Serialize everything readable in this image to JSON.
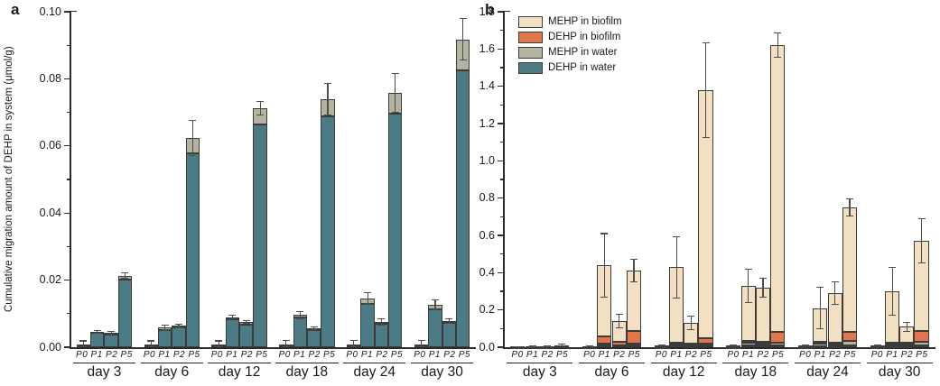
{
  "figure": {
    "background": "#ffffff"
  },
  "colors": {
    "dehp_water": "#4d7b85",
    "mehp_water": "#b4b3a0",
    "dehp_biofilm": "#e0764e",
    "mehp_biofilm": "#f3dfc1",
    "axis": "#2b2b2b",
    "error_bar": "#4d4d4d"
  },
  "legend": {
    "entries": [
      {
        "label": "MEHP in biofilm",
        "color": "#f3dfc1"
      },
      {
        "label": "DEHP in biofilm",
        "color": "#e0764e"
      },
      {
        "label": "MEHP in water",
        "color": "#b4b3a0"
      },
      {
        "label": "DEHP in water",
        "color": "#4d7b85"
      }
    ]
  },
  "chart_data": [
    {
      "panel_label": "a",
      "type": "bar",
      "stacked": true,
      "title": "",
      "xlabel": "",
      "ylabel": "Cumulative migration amount of DEHP in system (μmol/g)",
      "ylim": [
        0,
        0.1
      ],
      "ytick_major_step": 0.02,
      "ytick_minor_step": 0.01,
      "ytick_labels": [
        "0.00",
        "0.02",
        "0.04",
        "0.06",
        "0.08",
        "0.10"
      ],
      "grid": false,
      "legend_position": "none",
      "categories": [
        "day 3",
        "day 6",
        "day 12",
        "day 18",
        "day 24",
        "day 30"
      ],
      "subcategories": [
        "P0",
        "P1",
        "P2",
        "P5"
      ],
      "series": [
        {
          "name": "DEHP in water",
          "color": "#4d7b85",
          "values": [
            [
              0.0007,
              0.0042,
              0.0038,
              0.0201
            ],
            [
              0.0007,
              0.0052,
              0.0058,
              0.0578
            ],
            [
              0.0007,
              0.0084,
              0.0068,
              0.0664
            ],
            [
              0.0007,
              0.0088,
              0.0052,
              0.0688
            ],
            [
              0.0007,
              0.0128,
              0.007,
              0.0697
            ],
            [
              0.0007,
              0.0112,
              0.0072,
              0.0824
            ]
          ]
        },
        {
          "name": "MEHP in water",
          "color": "#b4b3a0",
          "values": [
            [
              0.0002,
              0.0004,
              0.0004,
              0.0012
            ],
            [
              0.0002,
              0.0006,
              0.0006,
              0.0045
            ],
            [
              0.0002,
              0.0006,
              0.0007,
              0.0048
            ],
            [
              0.0002,
              0.0008,
              0.0004,
              0.0051
            ],
            [
              0.0002,
              0.0018,
              0.0005,
              0.0061
            ],
            [
              0.0002,
              0.0015,
              0.0006,
              0.0094
            ]
          ]
        }
      ],
      "errors": [
        [
          0.001,
          0.0004,
          0.0004,
          0.0008
        ],
        [
          0.001,
          0.0007,
          0.0005,
          0.0052
        ],
        [
          0.001,
          0.0005,
          0.0005,
          0.002
        ],
        [
          0.0012,
          0.001,
          0.0004,
          0.0047
        ],
        [
          0.0012,
          0.0017,
          0.0009,
          0.0058
        ],
        [
          0.0012,
          0.0015,
          0.0008,
          0.0062
        ]
      ]
    },
    {
      "panel_label": "b",
      "type": "bar",
      "stacked": true,
      "title": "",
      "xlabel": "",
      "ylabel": "",
      "ylim": [
        0,
        1.8
      ],
      "ytick_major_step": 0.2,
      "ytick_minor_step": 0.1,
      "ytick_labels": [
        "0.0",
        "0.2",
        "0.4",
        "0.6",
        "0.8",
        "1.0",
        "1.2",
        "1.4",
        "1.6",
        "1.8"
      ],
      "grid": false,
      "legend_position": "top-left",
      "categories": [
        "day 3",
        "day 6",
        "day 12",
        "day 18",
        "day 24",
        "day 30"
      ],
      "subcategories": [
        "P0",
        "P1",
        "P2",
        "P5"
      ],
      "series": [
        {
          "name": "DEHP in water",
          "color": "#4d7b85",
          "values": [
            [
              0.001,
              0.0015,
              0.0015,
              0.004
            ],
            [
              0.002,
              0.012,
              0.008,
              0.01
            ],
            [
              0.002,
              0.008,
              0.005,
              0.008
            ],
            [
              0.002,
              0.008,
              0.008,
              0.01
            ],
            [
              0.002,
              0.005,
              0.006,
              0.012
            ],
            [
              0.002,
              0.005,
              0.006,
              0.012
            ]
          ]
        },
        {
          "name": "MEHP in water",
          "color": "#b4b3a0",
          "values": [
            [
              0.001,
              0.001,
              0.001,
              0.005
            ],
            [
              0.002,
              0.006,
              0.004,
              0.008
            ],
            [
              0.002,
              0.006,
              0.005,
              0.01
            ],
            [
              0.002,
              0.014,
              0.012,
              0.015
            ],
            [
              0.002,
              0.012,
              0.01,
              0.02
            ],
            [
              0.002,
              0.008,
              0.008,
              0.018
            ]
          ]
        },
        {
          "name": "DEHP in biofilm",
          "color": "#e0764e",
          "values": [
            [
              0.0005,
              0.0005,
              0.0005,
              0.001
            ],
            [
              0.001,
              0.04,
              0.018,
              0.07
            ],
            [
              0.002,
              0.012,
              0.008,
              0.03
            ],
            [
              0.002,
              0.012,
              0.008,
              0.055
            ],
            [
              0.002,
              0.013,
              0.01,
              0.048
            ],
            [
              0.002,
              0.012,
              0.01,
              0.055
            ]
          ]
        },
        {
          "name": "MEHP in biofilm",
          "color": "#f3dfc1",
          "values": [
            [
              0.0005,
              0.001,
              0.001,
              0.002
            ],
            [
              0.001,
              0.382,
              0.11,
              0.322
            ],
            [
              0.002,
              0.404,
              0.112,
              1.332
            ],
            [
              0.002,
              0.296,
              0.292,
              1.54
            ],
            [
              0.002,
              0.18,
              0.264,
              0.67
            ],
            [
              0.002,
              0.275,
              0.086,
              0.485
            ]
          ]
        }
      ],
      "errors": [
        [
          0.001,
          0.001,
          0.001,
          0.003
        ],
        [
          0.002,
          0.17,
          0.035,
          0.06
        ],
        [
          0.003,
          0.165,
          0.035,
          0.255
        ],
        [
          0.003,
          0.09,
          0.05,
          0.065
        ],
        [
          0.003,
          0.11,
          0.06,
          0.045
        ],
        [
          0.003,
          0.13,
          0.025,
          0.12
        ]
      ]
    }
  ]
}
